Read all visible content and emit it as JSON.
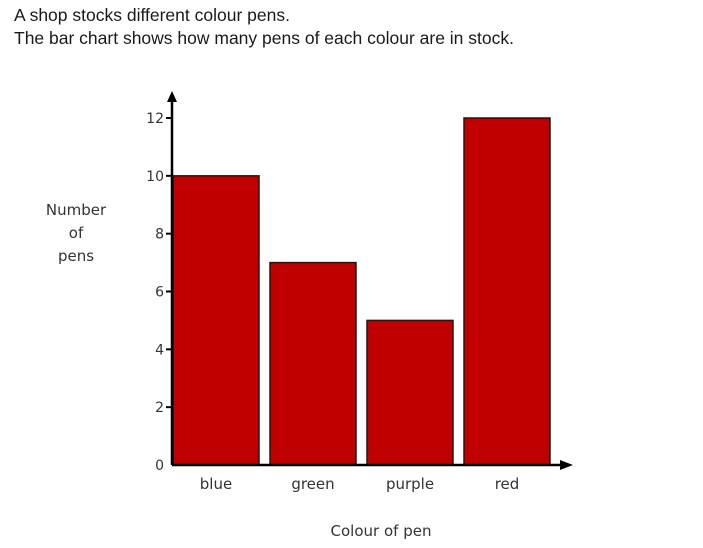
{
  "question": {
    "line1": "A shop stocks different colour pens.",
    "line2": "The bar chart shows how many pens of each colour are in stock."
  },
  "chart_data": {
    "type": "bar",
    "categories": [
      "blue",
      "green",
      "purple",
      "red"
    ],
    "values": [
      10,
      7,
      5,
      12
    ],
    "title": "",
    "xlabel": "Colour of pen",
    "ylabel_lines": [
      "Number",
      "of",
      "pens"
    ],
    "ylim": [
      0,
      12
    ],
    "yticks": [
      0,
      2,
      4,
      6,
      8,
      10,
      12
    ],
    "grid": false,
    "bar_color": "#c00000",
    "bar_edge_color": "#1a1a1a",
    "axis_color": "#000000"
  }
}
